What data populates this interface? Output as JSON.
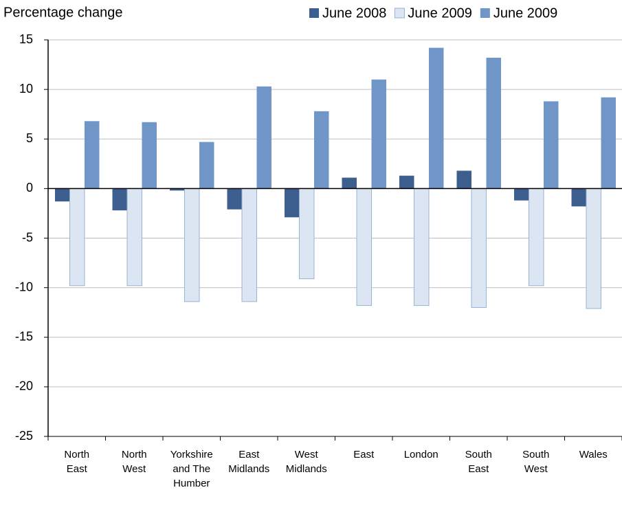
{
  "chart_data": {
    "type": "bar",
    "y_label": "Percentage change",
    "categories": [
      "North East",
      "North West",
      "Yorkshire and The Humber",
      "East Midlands",
      "West Midlands",
      "East",
      "London",
      "South East",
      "South West",
      "Wales"
    ],
    "series": [
      {
        "name": "June 2008",
        "color": "#3c5f8f",
        "values": [
          -1.3,
          -2.2,
          -0.2,
          -2.1,
          -2.9,
          1.1,
          1.3,
          1.8,
          -1.2,
          -1.8
        ]
      },
      {
        "name": "June 2009",
        "color": "#dce6f2",
        "values": [
          -9.8,
          -9.8,
          -11.4,
          -11.4,
          -9.1,
          -11.8,
          -11.8,
          -12.0,
          -9.8,
          -12.1
        ]
      },
      {
        "name": "June 2009",
        "color": "#7096c8",
        "values": [
          6.8,
          6.7,
          4.7,
          10.3,
          7.8,
          11.0,
          14.2,
          13.2,
          8.8,
          9.2
        ]
      }
    ],
    "ylim": [
      -25,
      15
    ],
    "yticks": [
      -25,
      -20,
      -15,
      -10,
      -5,
      0,
      5,
      10,
      15
    ],
    "grid": true
  }
}
